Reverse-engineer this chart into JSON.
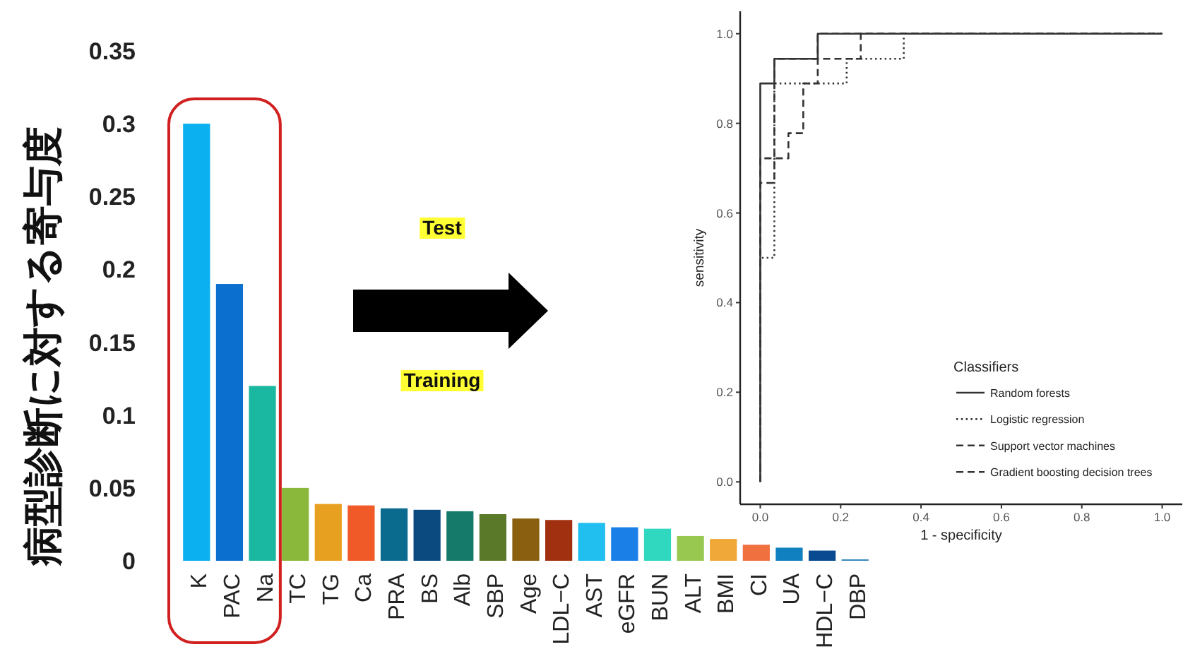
{
  "chart_data": [
    {
      "type": "bar",
      "ylabel": "病型診断に対する寄与度",
      "categories": [
        "K",
        "PAC",
        "Na",
        "TC",
        "TG",
        "Ca",
        "PRA",
        "BS",
        "Alb",
        "SBP",
        "Age",
        "LDL−C",
        "AST",
        "eGFR",
        "BUN",
        "ALT",
        "BMI",
        "CI",
        "UA",
        "HDL−C",
        "DBP"
      ],
      "values": [
        0.3,
        0.19,
        0.12,
        0.05,
        0.039,
        0.038,
        0.036,
        0.035,
        0.034,
        0.032,
        0.029,
        0.028,
        0.026,
        0.023,
        0.022,
        0.017,
        0.015,
        0.011,
        0.009,
        0.007,
        0.001
      ],
      "colors": [
        "#0bb0f0",
        "#0a6fcf",
        "#1ab8a0",
        "#8ab83a",
        "#e8a020",
        "#f05a28",
        "#0a6b8f",
        "#0a4a7f",
        "#157a6a",
        "#5a7a2a",
        "#8a6010",
        "#a03010",
        "#20bff0",
        "#1a80e8",
        "#30d8c0",
        "#98c850",
        "#f0a838",
        "#f07040",
        "#1080c0",
        "#0a4a90",
        "#3a8ac0"
      ],
      "ylim": [
        0,
        0.35
      ],
      "yticks": [
        0,
        0.05,
        0.1,
        0.15,
        0.2,
        0.25,
        0.3,
        0.35
      ],
      "annotations": [
        "Test",
        "Training"
      ]
    },
    {
      "type": "line",
      "xlabel": "1 - specificity",
      "ylabel": "sensitivity",
      "legend_title": "Classifiers",
      "legend": "bottom right",
      "xlim": [
        -0.05,
        1.05
      ],
      "ylim": [
        -0.05,
        1.05
      ],
      "xticks": [
        {
          "value": 0,
          "label": "0.0"
        },
        {
          "value": 0.2,
          "label": "0.2"
        },
        {
          "value": 0.4,
          "label": "0.4"
        },
        {
          "value": 0.6,
          "label": "0.6"
        },
        {
          "value": 0.8,
          "label": "0.8"
        },
        {
          "value": 1,
          "label": "1.0"
        }
      ],
      "yticks": [
        {
          "value": 0,
          "label": "0.0"
        },
        {
          "value": 0.2,
          "label": "0.2"
        },
        {
          "value": 0.4,
          "label": "0.4"
        },
        {
          "value": 0.6,
          "label": "0.6"
        },
        {
          "value": 0.8,
          "label": "0.8"
        },
        {
          "value": 1,
          "label": "1.0"
        }
      ],
      "series": [
        {
          "name": "Random forests",
          "color": "#333333",
          "line_style": "solid",
          "x": [
            0,
            0,
            0.035,
            0.035,
            0.143,
            0.143,
            1
          ],
          "values": [
            0,
            0.889,
            0.889,
            0.944,
            0.944,
            1,
            1
          ]
        },
        {
          "name": "Logistic regression",
          "color": "#333333",
          "line_style": "dotted",
          "x": [
            0,
            0,
            0.035,
            0.035,
            0.215,
            0.215,
            0.357,
            0.357,
            1
          ],
          "values": [
            0,
            0.5,
            0.5,
            0.889,
            0.889,
            0.944,
            0.944,
            1,
            1
          ]
        },
        {
          "name": "Support vector machines",
          "color": "#333333",
          "line_style": "dashed",
          "x": [
            0,
            0,
            0.07,
            0.07,
            0.107,
            0.107,
            0.143,
            0.143,
            0.25,
            0.25,
            1
          ],
          "values": [
            0,
            0.722,
            0.722,
            0.778,
            0.778,
            0.889,
            0.889,
            0.944,
            0.944,
            1,
            1
          ]
        },
        {
          "name": "Gradient boosting decision trees",
          "color": "#333333",
          "line_style": "dashed",
          "x": [
            0,
            0,
            0.035,
            0.035,
            0.143,
            0.143,
            1
          ],
          "values": [
            0,
            0.667,
            0.667,
            0.944,
            0.944,
            1,
            1
          ]
        }
      ]
    }
  ]
}
